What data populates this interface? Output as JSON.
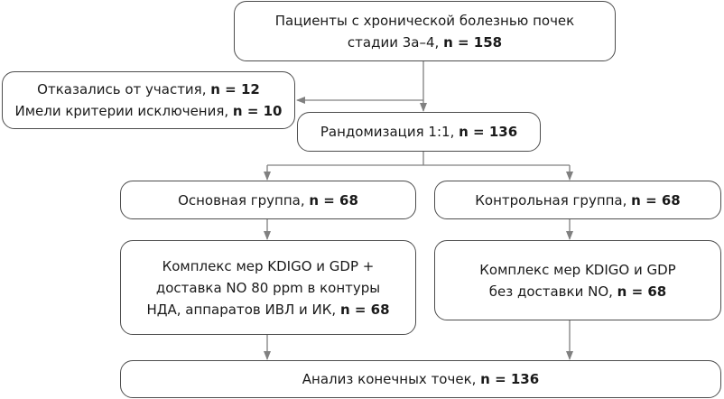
{
  "boxes": {
    "patients": {
      "lines": [
        {
          "text": "Пациенты с хронической болезнью почек",
          "bold": ""
        },
        {
          "text": "стадии 3а–4, ",
          "bold": "n = 158"
        }
      ]
    },
    "excluded": {
      "lines": [
        {
          "text": "Отказались от участия, ",
          "bold": "n = 12"
        },
        {
          "text": "Имели критерии исключения, ",
          "bold": "n = 10"
        }
      ]
    },
    "randomization": {
      "lines": [
        {
          "text": "Рандомизация 1:1, ",
          "bold": "n = 136"
        }
      ]
    },
    "main_group": {
      "lines": [
        {
          "text": "Основная группа, ",
          "bold": "n = 68"
        }
      ]
    },
    "control_group": {
      "lines": [
        {
          "text": "Контрольная группа, ",
          "bold": "n = 68"
        }
      ]
    },
    "main_treatment": {
      "lines": [
        {
          "text": "Комплекс мер KDIGO и GDP +",
          "bold": ""
        },
        {
          "text": "доставка NO 80 ppm в контуры",
          "bold": ""
        },
        {
          "text": "НДА, аппаратов ИВЛ и ИК, ",
          "bold": "n = 68"
        }
      ]
    },
    "control_treatment": {
      "lines": [
        {
          "text": "Комплекс мер KDIGO и GDP",
          "bold": ""
        },
        {
          "text": "без доставки NO, ",
          "bold": "n = 68"
        }
      ]
    },
    "analysis": {
      "lines": [
        {
          "text": "Анализ конечных точек, ",
          "bold": "n = 136"
        }
      ]
    }
  },
  "colors": {
    "border": "#4d4d4d",
    "connector": "#808080",
    "text": "#1a1a1a"
  }
}
